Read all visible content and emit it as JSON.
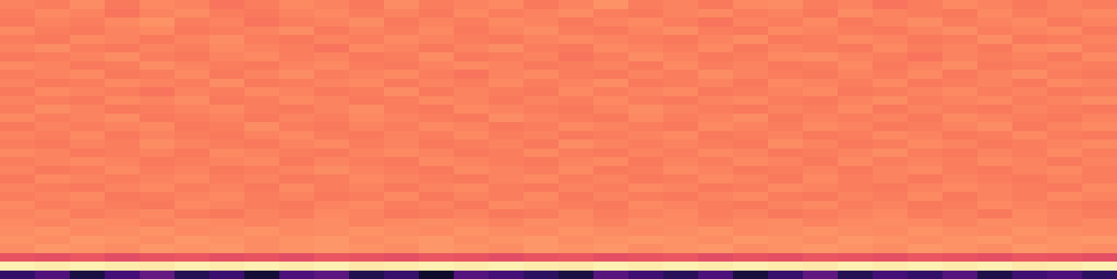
{
  "chart_data": {
    "type": "heatmap",
    "color": "magma",
    "tick_labels": false,
    "zlim": [
      0,
      1
    ],
    "cells": [
      [
        0.74,
        0.73,
        0.76,
        0.72,
        0.75,
        0.74,
        0.71,
        0.73,
        0.75,
        0.74,
        0.72,
        0.76,
        0.73,
        0.74,
        0.75,
        0.72,
        0.74,
        0.77,
        0.73,
        0.74,
        0.72,
        0.75,
        0.76,
        0.73,
        0.74,
        0.71,
        0.73,
        0.75,
        0.74,
        0.72,
        0.74,
        0.73
      ],
      [
        0.73,
        0.75,
        0.74,
        0.71,
        0.74,
        0.76,
        0.73,
        0.72,
        0.74,
        0.75,
        0.73,
        0.74,
        0.72,
        0.75,
        0.73,
        0.74,
        0.76,
        0.73,
        0.72,
        0.74,
        0.75,
        0.73,
        0.74,
        0.72,
        0.76,
        0.74,
        0.73,
        0.72,
        0.75,
        0.73,
        0.74,
        0.75
      ],
      [
        0.72,
        0.74,
        0.73,
        0.75,
        0.77,
        0.73,
        0.74,
        0.71,
        0.73,
        0.74,
        0.76,
        0.72,
        0.74,
        0.73,
        0.75,
        0.74,
        0.72,
        0.74,
        0.75,
        0.73,
        0.71,
        0.74,
        0.73,
        0.75,
        0.72,
        0.74,
        0.76,
        0.73,
        0.74,
        0.75,
        0.72,
        0.74
      ],
      [
        0.75,
        0.73,
        0.72,
        0.74,
        0.75,
        0.72,
        0.73,
        0.74,
        0.76,
        0.72,
        0.74,
        0.73,
        0.75,
        0.72,
        0.74,
        0.76,
        0.73,
        0.72,
        0.74,
        0.76,
        0.73,
        0.72,
        0.75,
        0.74,
        0.73,
        0.72,
        0.74,
        0.76,
        0.73,
        0.74,
        0.75,
        0.72
      ],
      [
        0.73,
        0.72,
        0.75,
        0.74,
        0.72,
        0.74,
        0.76,
        0.73,
        0.72,
        0.74,
        0.73,
        0.75,
        0.74,
        0.73,
        0.72,
        0.74,
        0.75,
        0.74,
        0.73,
        0.72,
        0.74,
        0.76,
        0.72,
        0.73,
        0.75,
        0.74,
        0.72,
        0.73,
        0.76,
        0.72,
        0.73,
        0.74
      ],
      [
        0.74,
        0.76,
        0.73,
        0.72,
        0.74,
        0.73,
        0.75,
        0.74,
        0.73,
        0.71,
        0.75,
        0.74,
        0.72,
        0.74,
        0.76,
        0.73,
        0.72,
        0.75,
        0.74,
        0.73,
        0.75,
        0.72,
        0.74,
        0.73,
        0.72,
        0.75,
        0.73,
        0.74,
        0.72,
        0.75,
        0.76,
        0.73
      ],
      [
        0.72,
        0.73,
        0.74,
        0.76,
        0.73,
        0.72,
        0.74,
        0.75,
        0.73,
        0.74,
        0.72,
        0.73,
        0.76,
        0.72,
        0.73,
        0.74,
        0.71,
        0.73,
        0.76,
        0.74,
        0.72,
        0.73,
        0.75,
        0.76,
        0.74,
        0.73,
        0.71,
        0.74,
        0.73,
        0.74,
        0.72,
        0.75
      ],
      [
        0.75,
        0.74,
        0.72,
        0.73,
        0.76,
        0.74,
        0.73,
        0.72,
        0.74,
        0.75,
        0.73,
        0.72,
        0.74,
        0.75,
        0.74,
        0.72,
        0.73,
        0.74,
        0.72,
        0.75,
        0.73,
        0.74,
        0.72,
        0.73,
        0.75,
        0.72,
        0.74,
        0.76,
        0.72,
        0.73,
        0.74,
        0.73
      ],
      [
        0.73,
        0.74,
        0.75,
        0.72,
        0.73,
        0.75,
        0.72,
        0.74,
        0.76,
        0.73,
        0.74,
        0.75,
        0.73,
        0.71,
        0.74,
        0.75,
        0.73,
        0.72,
        0.74,
        0.73,
        0.76,
        0.74,
        0.73,
        0.72,
        0.74,
        0.73,
        0.75,
        0.72,
        0.74,
        0.76,
        0.73,
        0.72
      ],
      [
        0.74,
        0.72,
        0.73,
        0.75,
        0.74,
        0.73,
        0.76,
        0.72,
        0.73,
        0.74,
        0.75,
        0.72,
        0.74,
        0.73,
        0.75,
        0.73,
        0.74,
        0.76,
        0.72,
        0.73,
        0.74,
        0.72,
        0.75,
        0.74,
        0.73,
        0.75,
        0.72,
        0.73,
        0.74,
        0.72,
        0.75,
        0.74
      ],
      [
        0.72,
        0.75,
        0.74,
        0.73,
        0.71,
        0.74,
        0.73,
        0.75,
        0.74,
        0.72,
        0.73,
        0.76,
        0.72,
        0.74,
        0.73,
        0.72,
        0.75,
        0.73,
        0.74,
        0.75,
        0.72,
        0.73,
        0.74,
        0.75,
        0.72,
        0.73,
        0.74,
        0.75,
        0.73,
        0.74,
        0.72,
        0.73
      ],
      [
        0.74,
        0.73,
        0.72,
        0.75,
        0.74,
        0.76,
        0.72,
        0.73,
        0.75,
        0.74,
        0.72,
        0.73,
        0.75,
        0.74,
        0.72,
        0.74,
        0.73,
        0.75,
        0.73,
        0.72,
        0.74,
        0.75,
        0.73,
        0.72,
        0.74,
        0.76,
        0.73,
        0.74,
        0.75,
        0.73,
        0.74,
        0.76
      ],
      [
        0.73,
        0.76,
        0.74,
        0.72,
        0.73,
        0.74,
        0.75,
        0.73,
        0.72,
        0.74,
        0.76,
        0.73,
        0.72,
        0.75,
        0.74,
        0.73,
        0.72,
        0.74,
        0.76,
        0.74,
        0.73,
        0.72,
        0.74,
        0.73,
        0.75,
        0.72,
        0.74,
        0.73,
        0.72,
        0.74,
        0.73,
        0.72
      ],
      [
        0.75,
        0.73,
        0.74,
        0.76,
        0.72,
        0.73,
        0.74,
        0.72,
        0.74,
        0.73,
        0.75,
        0.74,
        0.73,
        0.72,
        0.76,
        0.74,
        0.73,
        0.72,
        0.75,
        0.73,
        0.74,
        0.76,
        0.72,
        0.74,
        0.73,
        0.74,
        0.72,
        0.75,
        0.74,
        0.73,
        0.72,
        0.74
      ],
      [
        0.72,
        0.74,
        0.73,
        0.74,
        0.75,
        0.72,
        0.73,
        0.76,
        0.73,
        0.72,
        0.74,
        0.73,
        0.75,
        0.74,
        0.72,
        0.73,
        0.75,
        0.74,
        0.73,
        0.72,
        0.75,
        0.74,
        0.73,
        0.75,
        0.74,
        0.72,
        0.73,
        0.74,
        0.76,
        0.72,
        0.74,
        0.75
      ],
      [
        0.74,
        0.73,
        0.75,
        0.72,
        0.74,
        0.73,
        0.72,
        0.74,
        0.75,
        0.73,
        0.72,
        0.74,
        0.73,
        0.75,
        0.73,
        0.74,
        0.72,
        0.73,
        0.74,
        0.75,
        0.72,
        0.73,
        0.74,
        0.72,
        0.73,
        0.75,
        0.74,
        0.72,
        0.73,
        0.75,
        0.73,
        0.72
      ],
      [
        0.73,
        0.72,
        0.74,
        0.73,
        0.76,
        0.74,
        0.73,
        0.72,
        0.74,
        0.75,
        0.73,
        0.74,
        0.72,
        0.73,
        0.74,
        0.72,
        0.76,
        0.74,
        0.73,
        0.74,
        0.73,
        0.72,
        0.76,
        0.74,
        0.72,
        0.73,
        0.75,
        0.74,
        0.72,
        0.73,
        0.74,
        0.75
      ],
      [
        0.75,
        0.74,
        0.72,
        0.73,
        0.74,
        0.72,
        0.75,
        0.74,
        0.73,
        0.72,
        0.74,
        0.75,
        0.74,
        0.72,
        0.73,
        0.75,
        0.73,
        0.72,
        0.74,
        0.73,
        0.75,
        0.74,
        0.72,
        0.73,
        0.74,
        0.76,
        0.73,
        0.72,
        0.74,
        0.73,
        0.75,
        0.73
      ],
      [
        0.73,
        0.74,
        0.75,
        0.74,
        0.72,
        0.73,
        0.74,
        0.75,
        0.72,
        0.74,
        0.73,
        0.72,
        0.75,
        0.74,
        0.73,
        0.72,
        0.74,
        0.75,
        0.72,
        0.74,
        0.73,
        0.75,
        0.74,
        0.72,
        0.75,
        0.73,
        0.74,
        0.73,
        0.75,
        0.74,
        0.72,
        0.74
      ],
      [
        0.74,
        0.72,
        0.73,
        0.75,
        0.73,
        0.74,
        0.72,
        0.73,
        0.74,
        0.76,
        0.74,
        0.73,
        0.72,
        0.75,
        0.74,
        0.73,
        0.75,
        0.72,
        0.73,
        0.75,
        0.74,
        0.72,
        0.73,
        0.74,
        0.72,
        0.74,
        0.75,
        0.73,
        0.72,
        0.74,
        0.75,
        0.73
      ],
      [
        0.72,
        0.75,
        0.74,
        0.73,
        0.74,
        0.75,
        0.73,
        0.74,
        0.72,
        0.73,
        0.75,
        0.74,
        0.73,
        0.72,
        0.74,
        0.75,
        0.73,
        0.74,
        0.72,
        0.73,
        0.75,
        0.74,
        0.72,
        0.75,
        0.73,
        0.74,
        0.72,
        0.74,
        0.73,
        0.72,
        0.74,
        0.73
      ],
      [
        0.74,
        0.73,
        0.72,
        0.74,
        0.75,
        0.73,
        0.74,
        0.72,
        0.75,
        0.73,
        0.74,
        0.72,
        0.74,
        0.75,
        0.73,
        0.72,
        0.74,
        0.73,
        0.75,
        0.74,
        0.72,
        0.73,
        0.75,
        0.74,
        0.73,
        0.72,
        0.74,
        0.75,
        0.74,
        0.73,
        0.72,
        0.75
      ],
      [
        0.73,
        0.74,
        0.75,
        0.72,
        0.73,
        0.74,
        0.75,
        0.73,
        0.74,
        0.72,
        0.73,
        0.75,
        0.72,
        0.74,
        0.73,
        0.75,
        0.72,
        0.74,
        0.73,
        0.72,
        0.74,
        0.75,
        0.73,
        0.72,
        0.74,
        0.73,
        0.75,
        0.72,
        0.74,
        0.73,
        0.75,
        0.74
      ],
      [
        0.75,
        0.73,
        0.74,
        0.73,
        0.72,
        0.75,
        0.74,
        0.73,
        0.72,
        0.74,
        0.75,
        0.73,
        0.74,
        0.72,
        0.75,
        0.74,
        0.73,
        0.72,
        0.75,
        0.74,
        0.73,
        0.72,
        0.74,
        0.75,
        0.73,
        0.74,
        0.72,
        0.73,
        0.75,
        0.74,
        0.73,
        0.72
      ],
      [
        0.74,
        0.75,
        0.73,
        0.74,
        0.75,
        0.73,
        0.72,
        0.74,
        0.73,
        0.75,
        0.74,
        0.72,
        0.73,
        0.74,
        0.72,
        0.73,
        0.75,
        0.73,
        0.74,
        0.75,
        0.73,
        0.74,
        0.72,
        0.73,
        0.74,
        0.75,
        0.73,
        0.74,
        0.72,
        0.75,
        0.74,
        0.73
      ],
      [
        0.75,
        0.74,
        0.76,
        0.75,
        0.74,
        0.76,
        0.75,
        0.74,
        0.75,
        0.76,
        0.74,
        0.75,
        0.76,
        0.75,
        0.74,
        0.76,
        0.75,
        0.74,
        0.76,
        0.75,
        0.74,
        0.75,
        0.76,
        0.74,
        0.75,
        0.76,
        0.75,
        0.74,
        0.76,
        0.75,
        0.74,
        0.75
      ],
      [
        0.76,
        0.77,
        0.75,
        0.76,
        0.77,
        0.75,
        0.76,
        0.77,
        0.75,
        0.76,
        0.77,
        0.76,
        0.75,
        0.77,
        0.76,
        0.75,
        0.77,
        0.76,
        0.75,
        0.76,
        0.77,
        0.75,
        0.76,
        0.77,
        0.76,
        0.75,
        0.77,
        0.76,
        0.75,
        0.77,
        0.76,
        0.75
      ],
      [
        0.77,
        0.76,
        0.78,
        0.77,
        0.76,
        0.78,
        0.77,
        0.76,
        0.77,
        0.78,
        0.76,
        0.77,
        0.78,
        0.76,
        0.77,
        0.78,
        0.76,
        0.77,
        0.78,
        0.77,
        0.76,
        0.78,
        0.77,
        0.76,
        0.78,
        0.77,
        0.76,
        0.77,
        0.78,
        0.76,
        0.77,
        0.78
      ],
      [
        0.76,
        0.78,
        0.77,
        0.76,
        0.78,
        0.77,
        0.78,
        0.76,
        0.77,
        0.78,
        0.77,
        0.76,
        0.78,
        0.77,
        0.76,
        0.78,
        0.77,
        0.78,
        0.76,
        0.77,
        0.78,
        0.76,
        0.77,
        0.78,
        0.77,
        0.76,
        0.78,
        0.77,
        0.76,
        0.78,
        0.77,
        0.76
      ],
      [
        0.63,
        0.62,
        0.64,
        0.61,
        0.63,
        0.64,
        0.62,
        0.63,
        0.61,
        0.64,
        0.63,
        0.62,
        0.64,
        0.63,
        0.61,
        0.63,
        0.64,
        0.62,
        0.63,
        0.64,
        0.61,
        0.63,
        0.62,
        0.64,
        0.63,
        0.62,
        0.64,
        0.63,
        0.62,
        0.64,
        0.63,
        0.62
      ],
      [
        0.97,
        0.96,
        0.97,
        0.96,
        0.95,
        0.97,
        0.96,
        0.97,
        0.96,
        0.97,
        0.95,
        0.96,
        0.97,
        0.96,
        0.97,
        0.96,
        0.95,
        0.97,
        0.96,
        0.97,
        0.96,
        0.97,
        0.96,
        0.95,
        0.97,
        0.96,
        0.97,
        0.96,
        0.97,
        0.95,
        0.96,
        0.97
      ],
      [
        0.18,
        0.25,
        0.12,
        0.22,
        0.3,
        0.15,
        0.2,
        0.1,
        0.24,
        0.28,
        0.14,
        0.19,
        0.08,
        0.26,
        0.22,
        0.17,
        0.12,
        0.27,
        0.21,
        0.16,
        0.24,
        0.11,
        0.19,
        0.29,
        0.15,
        0.22,
        0.18,
        0.26,
        0.13,
        0.21,
        0.24,
        0.17
      ]
    ]
  }
}
